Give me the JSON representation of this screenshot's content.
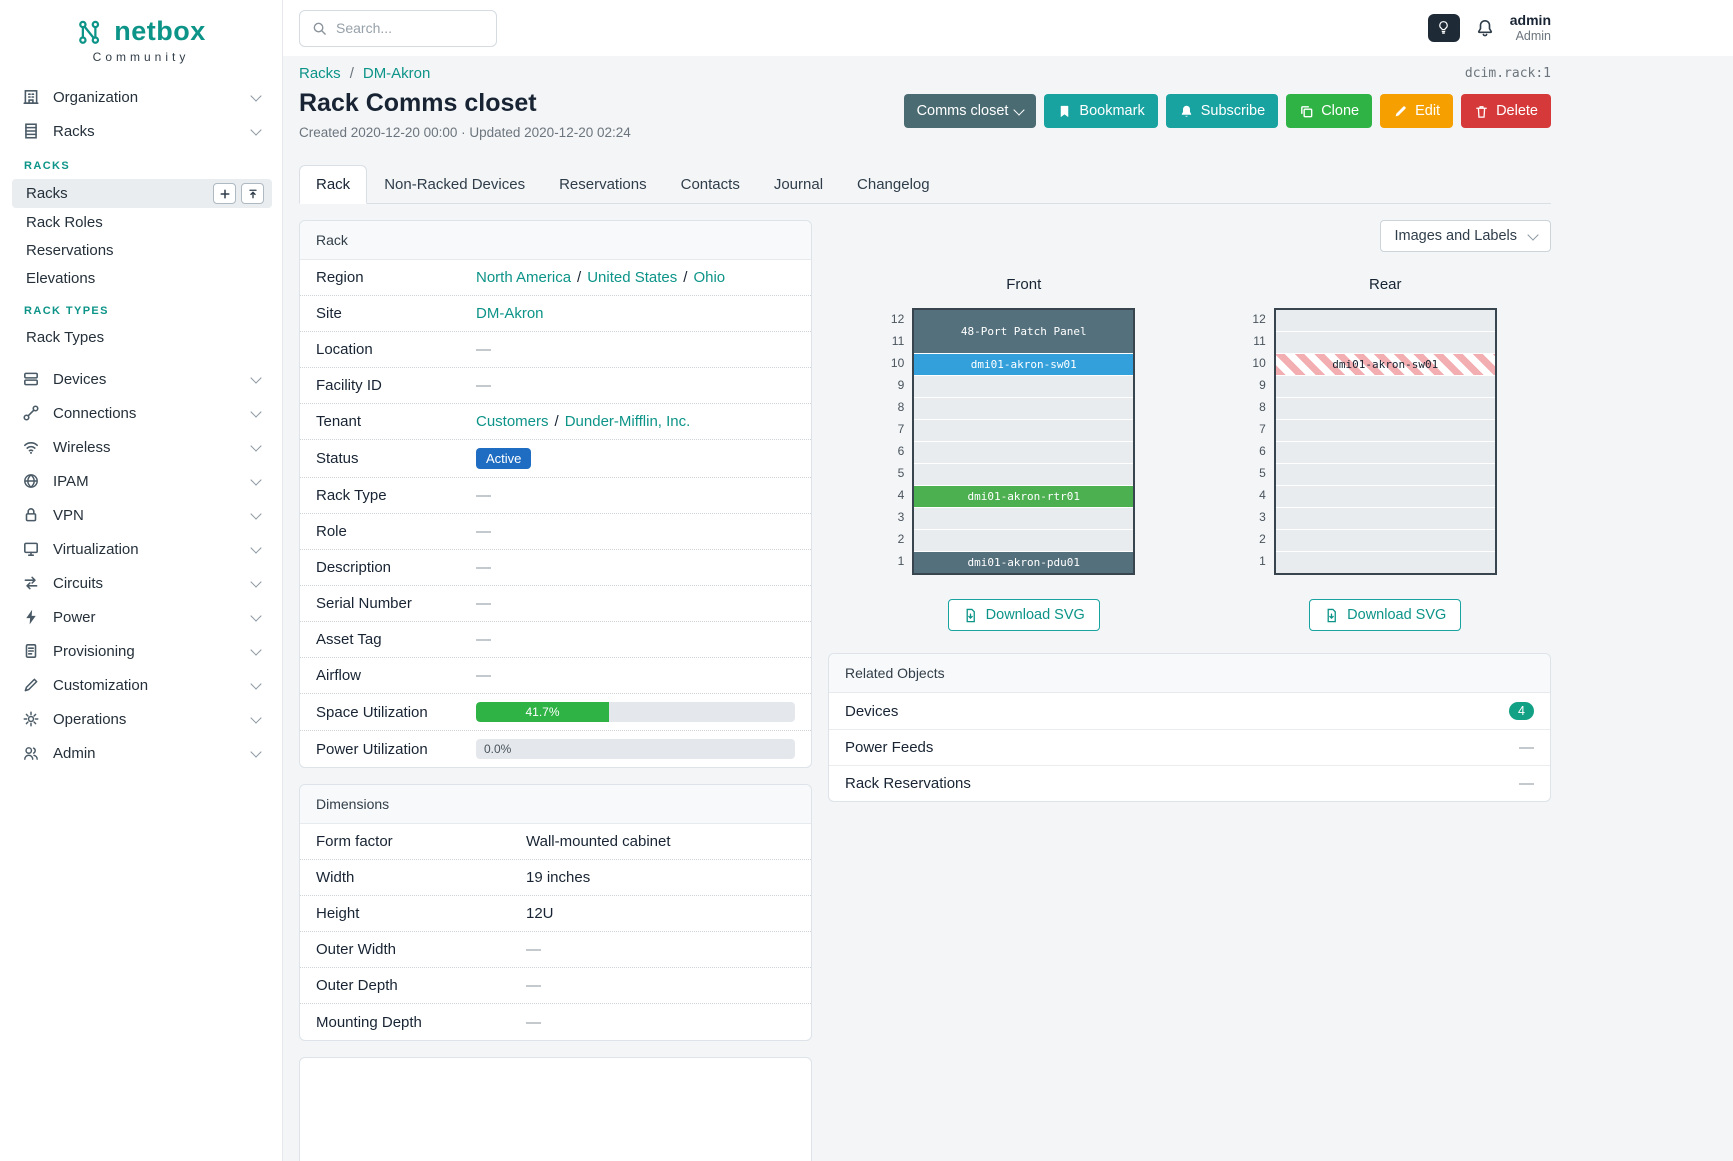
{
  "brand": {
    "name": "netbox",
    "subtitle": "Community"
  },
  "topbar": {
    "search_placeholder": "Search...",
    "user": {
      "name": "admin",
      "role": "Admin"
    }
  },
  "sidebar": {
    "top": [
      "Organization",
      "Racks"
    ],
    "racks_panel": {
      "section1": "RACKS",
      "items1": [
        "Racks",
        "Rack Roles",
        "Reservations",
        "Elevations"
      ],
      "section2": "RACK TYPES",
      "items2": [
        "Rack Types"
      ]
    },
    "groups": [
      "Devices",
      "Connections",
      "Wireless",
      "IPAM",
      "VPN",
      "Virtualization",
      "Circuits",
      "Power",
      "Provisioning",
      "Customization",
      "Operations",
      "Admin"
    ]
  },
  "page": {
    "breadcrumb": [
      "Racks",
      "DM-Akron"
    ],
    "sep": "/",
    "object_id": "dcim.rack:1",
    "title": "Rack Comms closet",
    "meta": "Created 2020-12-20 00:00 · Updated 2020-12-20 02:24",
    "actions": {
      "context": "Comms closet",
      "bookmark": "Bookmark",
      "subscribe": "Subscribe",
      "clone": "Clone",
      "edit": "Edit",
      "delete": "Delete"
    },
    "tabs": [
      {
        "label": "Rack",
        "active": true
      },
      {
        "label": "Non-Racked Devices"
      },
      {
        "label": "Reservations"
      },
      {
        "label": "Contacts"
      },
      {
        "label": "Journal"
      },
      {
        "label": "Changelog"
      }
    ]
  },
  "rack_card": {
    "title": "Rack",
    "sep": "/",
    "rows": {
      "region": {
        "label": "Region",
        "a": "North America",
        "b": "United States",
        "c": "Ohio"
      },
      "site": {
        "label": "Site",
        "value": "DM-Akron"
      },
      "location": {
        "label": "Location",
        "value": "—"
      },
      "facility_id": {
        "label": "Facility ID",
        "value": "—"
      },
      "tenant": {
        "label": "Tenant",
        "a": "Customers",
        "b": "Dunder-Mifflin, Inc."
      },
      "status": {
        "label": "Status",
        "value": "Active"
      },
      "rack_type": {
        "label": "Rack Type",
        "value": "—"
      },
      "role": {
        "label": "Role",
        "value": "—"
      },
      "description": {
        "label": "Description",
        "value": "—"
      },
      "serial_number": {
        "label": "Serial Number",
        "value": "—"
      },
      "asset_tag": {
        "label": "Asset Tag",
        "value": "—"
      },
      "airflow": {
        "label": "Airflow",
        "value": "—"
      },
      "space_utilization": {
        "label": "Space Utilization",
        "percent": 41.7,
        "text": "41.7%"
      },
      "power_utilization": {
        "label": "Power Utilization",
        "percent": 0,
        "text": "0.0%"
      }
    }
  },
  "dimensions_card": {
    "title": "Dimensions",
    "rows": {
      "form_factor": {
        "label": "Form factor",
        "value": "Wall-mounted cabinet"
      },
      "width": {
        "label": "Width",
        "value": "19 inches"
      },
      "height": {
        "label": "Height",
        "value": "12U"
      },
      "outer_width": {
        "label": "Outer Width",
        "value": "—"
      },
      "outer_depth": {
        "label": "Outer Depth",
        "value": "—"
      },
      "mounting_depth": {
        "label": "Mounting Depth",
        "value": "—"
      }
    }
  },
  "elevations": {
    "view_toggle": "Images and Labels",
    "download_label": "Download SVG",
    "front": {
      "title": "Front",
      "unit_count": 12,
      "units": [
        {
          "span": 2,
          "type": "slate",
          "label": "48-Port Patch Panel"
        },
        {
          "span": 1,
          "type": "blue",
          "label": "dmi01-akron-sw01"
        },
        {
          "span": 1,
          "type": "empty"
        },
        {
          "span": 1,
          "type": "empty"
        },
        {
          "span": 1,
          "type": "empty"
        },
        {
          "span": 1,
          "type": "empty"
        },
        {
          "span": 1,
          "type": "empty"
        },
        {
          "span": 1,
          "type": "green",
          "label": "dmi01-akron-rtr01"
        },
        {
          "span": 1,
          "type": "empty"
        },
        {
          "span": 1,
          "type": "empty"
        },
        {
          "span": 1,
          "type": "slate",
          "label": "dmi01-akron-pdu01"
        }
      ]
    },
    "rear": {
      "title": "Rear",
      "unit_count": 12,
      "units": [
        {
          "span": 1,
          "type": "empty"
        },
        {
          "span": 1,
          "type": "empty"
        },
        {
          "span": 1,
          "type": "striped",
          "label": "dmi01-akron-sw01"
        },
        {
          "span": 1,
          "type": "empty"
        },
        {
          "span": 1,
          "type": "empty"
        },
        {
          "span": 1,
          "type": "empty"
        },
        {
          "span": 1,
          "type": "empty"
        },
        {
          "span": 1,
          "type": "empty"
        },
        {
          "span": 1,
          "type": "empty"
        },
        {
          "span": 1,
          "type": "empty"
        },
        {
          "span": 1,
          "type": "empty"
        },
        {
          "span": 1,
          "type": "empty"
        }
      ]
    }
  },
  "related_card": {
    "title": "Related Objects",
    "rows": {
      "devices": {
        "label": "Devices",
        "count": "4"
      },
      "power_feeds": {
        "label": "Power Feeds",
        "value": "—"
      },
      "rack_reservations": {
        "label": "Rack Reservations",
        "value": "—"
      }
    }
  },
  "colors": {
    "accent_teal": "#0d9488",
    "button_teal": "#18a2a0",
    "green": "#2fb344",
    "orange": "#f59f00",
    "red": "#d63939",
    "status_blue": "#1f6dc2",
    "device_blue": "#33a0dc",
    "device_green": "#4caf50",
    "device_slate": "#54707c",
    "context_button": "#4a6b72",
    "count_badge": "#12a184"
  }
}
